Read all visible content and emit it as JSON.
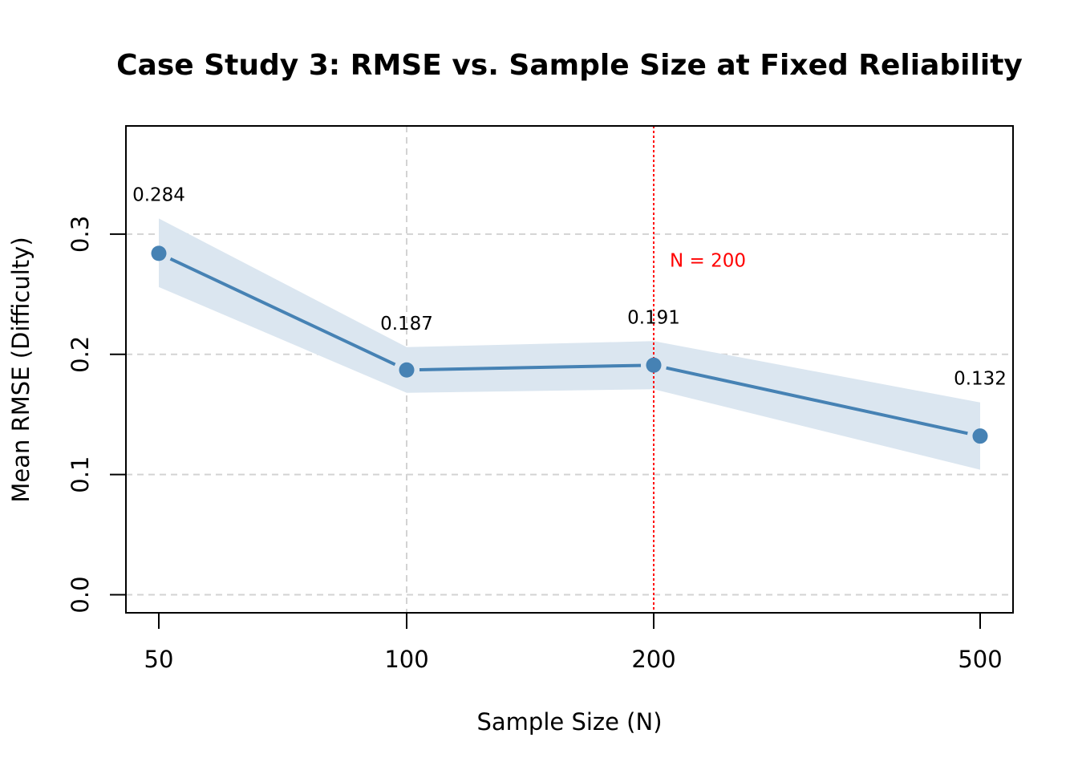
{
  "chart_data": {
    "type": "line",
    "title": "Case Study 3: RMSE vs. Sample Size at Fixed Reliability",
    "xlabel": "Sample Size (N)",
    "ylabel": "Mean RMSE (Difficulty)",
    "categories": [
      "50",
      "100",
      "200",
      "500"
    ],
    "x_scale": "categorical",
    "y_ticks": [
      "0.0",
      "0.1",
      "0.2",
      "0.3"
    ],
    "y_tick_values": [
      0.0,
      0.1,
      0.2,
      0.3
    ],
    "ylim": [
      -0.015,
      0.39
    ],
    "grid": true,
    "series": [
      {
        "values": [
          0.284,
          0.187,
          0.191,
          0.132
        ],
        "lower": [
          0.256,
          0.168,
          0.171,
          0.104
        ],
        "upper": [
          0.313,
          0.206,
          0.211,
          0.16
        ],
        "labels": [
          "0.284",
          "0.187",
          "0.191",
          "0.132"
        ]
      }
    ],
    "reference_line": {
      "category": "200",
      "label": "N = 200",
      "color": "#ff0000"
    },
    "colors": {
      "line": "#4682b4",
      "band": "#dbe6f0",
      "grid": "#d3d3d3"
    }
  }
}
